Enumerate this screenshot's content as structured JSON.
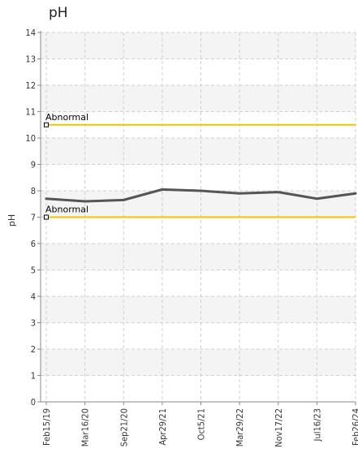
{
  "chart_data": {
    "type": "line",
    "title": "pH",
    "ylabel": "pH",
    "xlabel": "",
    "ylim": [
      0,
      14
    ],
    "yticks": [
      0,
      1,
      2,
      3,
      4,
      5,
      6,
      7,
      8,
      9,
      10,
      11,
      12,
      13,
      14
    ],
    "categories": [
      "Feb15/19",
      "Mar16/20",
      "Sep21/20",
      "Apr29/21",
      "Oct5/21",
      "Mar29/22",
      "Nov17/22",
      "Jul16/23",
      "Feb26/24"
    ],
    "series": [
      {
        "values": [
          7.7,
          7.6,
          7.65,
          8.05,
          8.0,
          7.9,
          7.95,
          7.7,
          7.9
        ],
        "color": "#555555"
      }
    ],
    "reference_lines": [
      {
        "label": "Abnormal",
        "value": 10.5,
        "color": "#f2c200"
      },
      {
        "label": "Abnormal",
        "value": 7.0,
        "color": "#f2c200"
      }
    ],
    "grid": true
  }
}
